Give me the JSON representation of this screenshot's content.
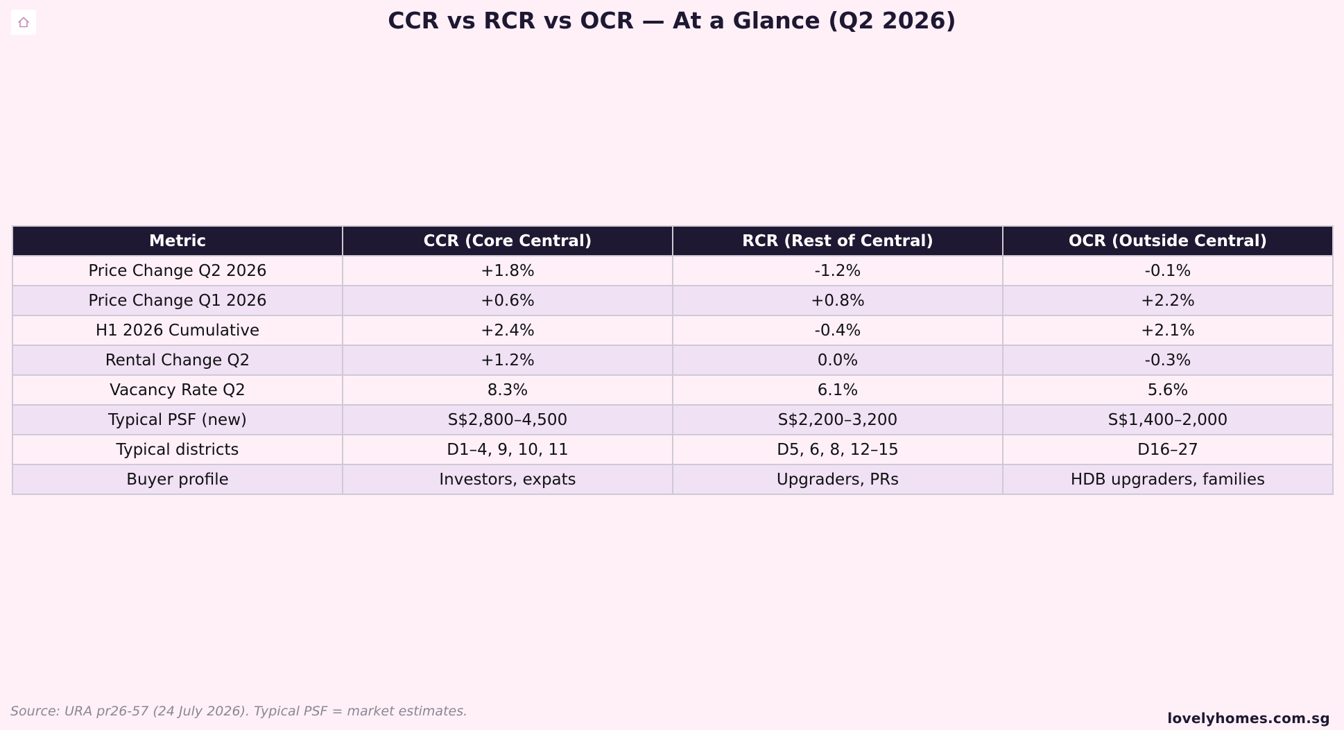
{
  "logo": {
    "icon": "home-icon",
    "color": "#c98ab8"
  },
  "colors": {
    "background": "#fff0f8",
    "header_bg": "#1e1832",
    "row_alt": "#f0e1f5",
    "border": "#cfc9d3"
  },
  "chart_data": {
    "type": "table",
    "title": "CCR vs RCR vs OCR — At a Glance (Q2 2026)",
    "columns": [
      "Metric",
      "CCR (Core Central)",
      "RCR (Rest of Central)",
      "OCR (Outside Central)"
    ],
    "rows": [
      [
        "Price Change Q2 2026",
        "+1.8%",
        "-1.2%",
        "-0.1%"
      ],
      [
        "Price Change Q1 2026",
        "+0.6%",
        "+0.8%",
        "+2.2%"
      ],
      [
        "H1 2026 Cumulative",
        "+2.4%",
        "-0.4%",
        "+2.1%"
      ],
      [
        "Rental Change Q2",
        "+1.2%",
        "0.0%",
        "-0.3%"
      ],
      [
        "Vacancy Rate Q2",
        "8.3%",
        "6.1%",
        "5.6%"
      ],
      [
        "Typical PSF (new)",
        "S$2,800–4,500",
        "S$2,200–3,200",
        "S$1,400–2,000"
      ],
      [
        "Typical districts",
        "D1–4, 9, 10, 11",
        "D5, 6, 8, 12–15",
        "D16–27"
      ],
      [
        "Buyer profile",
        "Investors, expats",
        "Upgraders, PRs",
        "HDB upgraders, families"
      ]
    ]
  },
  "footer": {
    "source": "Source: URA pr26-57 (24 July 2026). Typical PSF = market estimates.",
    "brand": "lovelyhomes.com.sg"
  }
}
